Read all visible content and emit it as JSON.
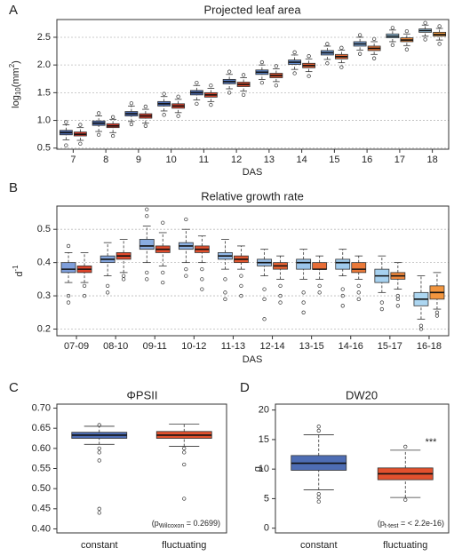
{
  "chart_data": [
    {
      "type": "box",
      "panel": "A",
      "title": "Projected leaf area",
      "ylabel": [
        "log",
        "10",
        "(mm",
        "2",
        ")"
      ],
      "xlabel": "DAS",
      "categories": [
        "7",
        "8",
        "9",
        "10",
        "11",
        "12",
        "13",
        "14",
        "15",
        "16",
        "17",
        "18"
      ],
      "ylim": [
        0.48,
        2.82
      ],
      "yticks": [
        {
          "value": 0.5,
          "label": "0.5"
        },
        {
          "value": 1.0,
          "label": "1.0"
        },
        {
          "value": 1.5,
          "label": "1.5"
        },
        {
          "value": 2.0,
          "label": "2.0"
        },
        {
          "value": 2.5,
          "label": "2.5"
        }
      ],
      "grid": true,
      "series": [
        {
          "colors": [
            "#4e6db4",
            "#4e6db4",
            "#4e6db4",
            "#4f70b8",
            "#5275bd",
            "#577cc2",
            "#5e86c9",
            "#668fcf",
            "#7099d6",
            "#7ea8de",
            "#9ccbea",
            "#a9d4ef"
          ],
          "boxes": [
            {
              "low": 0.65,
              "q1": 0.74,
              "median": 0.78,
              "q3": 0.82,
              "high": 0.92,
              "outliers": [
                0.97,
                0.55
              ]
            },
            {
              "low": 0.8,
              "q1": 0.91,
              "median": 0.95,
              "q3": 0.99,
              "high": 1.08,
              "outliers": [
                1.13,
                0.74
              ]
            },
            {
              "low": 0.98,
              "q1": 1.08,
              "median": 1.12,
              "q3": 1.16,
              "high": 1.26,
              "outliers": [
                1.31,
                0.93
              ]
            },
            {
              "low": 1.17,
              "q1": 1.26,
              "median": 1.3,
              "q3": 1.34,
              "high": 1.43,
              "outliers": [
                1.48,
                1.1
              ]
            },
            {
              "low": 1.37,
              "q1": 1.46,
              "median": 1.5,
              "q3": 1.54,
              "high": 1.63,
              "outliers": [
                1.68,
                1.3
              ]
            },
            {
              "low": 1.57,
              "q1": 1.66,
              "median": 1.7,
              "q3": 1.74,
              "high": 1.83,
              "outliers": [
                1.88,
                1.5
              ]
            },
            {
              "low": 1.74,
              "q1": 1.83,
              "median": 1.87,
              "q3": 1.91,
              "high": 2.0,
              "outliers": [
                2.05,
                1.68
              ]
            },
            {
              "low": 1.92,
              "q1": 2.01,
              "median": 2.05,
              "q3": 2.09,
              "high": 2.18,
              "outliers": [
                2.23,
                1.85
              ]
            },
            {
              "low": 2.1,
              "q1": 2.18,
              "median": 2.22,
              "q3": 2.26,
              "high": 2.34,
              "outliers": [
                2.38,
                2.03
              ]
            },
            {
              "low": 2.27,
              "q1": 2.34,
              "median": 2.38,
              "q3": 2.42,
              "high": 2.5,
              "outliers": [
                2.54,
                2.2
              ]
            },
            {
              "low": 2.42,
              "q1": 2.49,
              "median": 2.52,
              "q3": 2.56,
              "high": 2.63,
              "outliers": [
                2.67,
                2.36
              ]
            },
            {
              "low": 2.52,
              "q1": 2.59,
              "median": 2.62,
              "q3": 2.65,
              "high": 2.72,
              "outliers": [
                2.76,
                2.46
              ]
            }
          ]
        },
        {
          "colors": [
            "#d7392a",
            "#d7392a",
            "#d83c2a",
            "#d9402b",
            "#da452c",
            "#dc4b2d",
            "#de532f",
            "#e05c31",
            "#e36633",
            "#e67336",
            "#ee8a3b",
            "#f29a3f"
          ],
          "boxes": [
            {
              "low": 0.64,
              "q1": 0.72,
              "median": 0.75,
              "q3": 0.79,
              "high": 0.87,
              "outliers": [
                0.92,
                0.58
              ]
            },
            {
              "low": 0.78,
              "q1": 0.87,
              "median": 0.9,
              "q3": 0.94,
              "high": 1.02,
              "outliers": [
                1.06,
                0.72
              ]
            },
            {
              "low": 0.95,
              "q1": 1.04,
              "median": 1.08,
              "q3": 1.12,
              "high": 1.2,
              "outliers": [
                1.25,
                0.9
              ]
            },
            {
              "low": 1.14,
              "q1": 1.22,
              "median": 1.26,
              "q3": 1.3,
              "high": 1.38,
              "outliers": [
                1.43,
                1.08
              ]
            },
            {
              "low": 1.34,
              "q1": 1.42,
              "median": 1.46,
              "q3": 1.5,
              "high": 1.58,
              "outliers": [
                1.63,
                1.28
              ]
            },
            {
              "low": 1.53,
              "q1": 1.61,
              "median": 1.65,
              "q3": 1.69,
              "high": 1.77,
              "outliers": [
                1.82,
                1.46
              ]
            },
            {
              "low": 1.7,
              "q1": 1.77,
              "median": 1.81,
              "q3": 1.85,
              "high": 1.93,
              "outliers": [
                1.98,
                1.63
              ]
            },
            {
              "low": 1.88,
              "q1": 1.95,
              "median": 1.99,
              "q3": 2.03,
              "high": 2.11,
              "outliers": [
                2.16,
                1.8
              ]
            },
            {
              "low": 2.04,
              "q1": 2.11,
              "median": 2.15,
              "q3": 2.19,
              "high": 2.27,
              "outliers": [
                2.31,
                1.96
              ]
            },
            {
              "low": 2.19,
              "q1": 2.26,
              "median": 2.3,
              "q3": 2.34,
              "high": 2.42,
              "outliers": [
                2.47,
                2.12
              ]
            },
            {
              "low": 2.35,
              "q1": 2.42,
              "median": 2.45,
              "q3": 2.49,
              "high": 2.56,
              "outliers": [
                2.61,
                2.28
              ]
            },
            {
              "low": 2.45,
              "q1": 2.52,
              "median": 2.55,
              "q3": 2.59,
              "high": 2.66,
              "outliers": [
                2.7,
                2.38
              ]
            }
          ]
        }
      ]
    },
    {
      "type": "box",
      "panel": "B",
      "title": "Relative growth rate",
      "ylabel": [
        "d",
        "-1"
      ],
      "xlabel": "DAS",
      "categories": [
        "07-09",
        "08-10",
        "09-11",
        "10-12",
        "11-13",
        "12-14",
        "13-15",
        "14-16",
        "15-17",
        "16-18"
      ],
      "ylim": [
        0.18,
        0.57
      ],
      "yticks": [
        0.2,
        0.3,
        0.4,
        0.5
      ],
      "grid": true,
      "series": [
        {
          "colors": [
            "#7f9fdb",
            "#84a6de",
            "#89ade1",
            "#8eb3e4",
            "#93b9e7",
            "#98bfe9",
            "#9cc5eb",
            "#a0cbed",
            "#a6d1ef",
            "#acd6f1"
          ],
          "boxes": [
            {
              "low": 0.34,
              "q1": 0.37,
              "median": 0.38,
              "q3": 0.4,
              "high": 0.43,
              "outliers": [
                0.45,
                0.3,
                0.28
              ]
            },
            {
              "low": 0.36,
              "q1": 0.4,
              "median": 0.41,
              "q3": 0.42,
              "high": 0.46,
              "outliers": [
                0.33,
                0.31
              ]
            },
            {
              "low": 0.4,
              "q1": 0.44,
              "median": 0.45,
              "q3": 0.47,
              "high": 0.51,
              "outliers": [
                0.54,
                0.56,
                0.37,
                0.35
              ]
            },
            {
              "low": 0.4,
              "q1": 0.44,
              "median": 0.45,
              "q3": 0.46,
              "high": 0.5,
              "outliers": [
                0.53,
                0.38,
                0.36
              ]
            },
            {
              "low": 0.38,
              "q1": 0.41,
              "median": 0.42,
              "q3": 0.43,
              "high": 0.47,
              "outliers": [
                0.35,
                0.31,
                0.29
              ]
            },
            {
              "low": 0.36,
              "q1": 0.39,
              "median": 0.4,
              "q3": 0.41,
              "high": 0.44,
              "outliers": [
                0.32,
                0.29,
                0.23
              ]
            },
            {
              "low": 0.35,
              "q1": 0.38,
              "median": 0.4,
              "q3": 0.41,
              "high": 0.44,
              "outliers": [
                0.31,
                0.28,
                0.25
              ]
            },
            {
              "low": 0.36,
              "q1": 0.38,
              "median": 0.4,
              "q3": 0.41,
              "high": 0.44,
              "outliers": [
                0.32,
                0.3,
                0.27
              ]
            },
            {
              "low": 0.31,
              "q1": 0.34,
              "median": 0.36,
              "q3": 0.38,
              "high": 0.42,
              "outliers": [
                0.28,
                0.26
              ]
            },
            {
              "low": 0.23,
              "q1": 0.27,
              "median": 0.29,
              "q3": 0.31,
              "high": 0.36,
              "outliers": [
                0.21,
                0.2
              ]
            }
          ]
        },
        {
          "colors": [
            "#e0452b",
            "#e0482c",
            "#e14c2d",
            "#e2512e",
            "#e45830",
            "#e66233",
            "#e86d36",
            "#ea7939",
            "#ee863b",
            "#f2953e"
          ],
          "boxes": [
            {
              "low": 0.34,
              "q1": 0.37,
              "median": 0.38,
              "q3": 0.39,
              "high": 0.43,
              "outliers": [
                0.33,
                0.3
              ]
            },
            {
              "low": 0.37,
              "q1": 0.41,
              "median": 0.42,
              "q3": 0.43,
              "high": 0.47,
              "outliers": [
                0.36,
                0.35
              ]
            },
            {
              "low": 0.39,
              "q1": 0.43,
              "median": 0.44,
              "q3": 0.45,
              "high": 0.49,
              "outliers": [
                0.52,
                0.37,
                0.34
              ]
            },
            {
              "low": 0.4,
              "q1": 0.43,
              "median": 0.44,
              "q3": 0.45,
              "high": 0.48,
              "outliers": [
                0.38,
                0.35,
                0.32
              ]
            },
            {
              "low": 0.38,
              "q1": 0.4,
              "median": 0.41,
              "q3": 0.42,
              "high": 0.45,
              "outliers": [
                0.36,
                0.33,
                0.3
              ]
            },
            {
              "low": 0.35,
              "q1": 0.38,
              "median": 0.39,
              "q3": 0.4,
              "high": 0.42,
              "outliers": [
                0.33,
                0.3,
                0.28
              ]
            },
            {
              "low": 0.35,
              "q1": 0.38,
              "median": 0.38,
              "q3": 0.4,
              "high": 0.42,
              "outliers": [
                0.33,
                0.31
              ]
            },
            {
              "low": 0.35,
              "q1": 0.37,
              "median": 0.38,
              "q3": 0.4,
              "high": 0.42,
              "outliers": [
                0.33,
                0.31,
                0.29
              ]
            },
            {
              "low": 0.32,
              "q1": 0.35,
              "median": 0.36,
              "q3": 0.37,
              "high": 0.4,
              "outliers": [
                0.3,
                0.29,
                0.27
              ]
            },
            {
              "low": 0.26,
              "q1": 0.29,
              "median": 0.31,
              "q3": 0.33,
              "high": 0.37,
              "outliers": [
                0.25,
                0.24
              ]
            }
          ]
        }
      ]
    },
    {
      "type": "box",
      "panel": "C",
      "title": "ΦPSII",
      "annotation": [
        "(p",
        "Wilcoxon",
        " = 0.2699)"
      ],
      "categories": [
        "constant",
        "fluctuating"
      ],
      "ylim": [
        0.39,
        0.71
      ],
      "yticks": [
        {
          "value": 0.4,
          "label": "0.40"
        },
        {
          "value": 0.45,
          "label": "0.45"
        },
        {
          "value": 0.5,
          "label": "0.50"
        },
        {
          "value": 0.55,
          "label": "0.55"
        },
        {
          "value": 0.6,
          "label": "0.60"
        },
        {
          "value": 0.65,
          "label": "0.65"
        },
        {
          "value": 0.7,
          "label": "0.70"
        }
      ],
      "grid": false,
      "series": [
        {
          "colors": [
            "#4e6db4",
            "#e2512e"
          ],
          "boxes": [
            {
              "low": 0.61,
              "q1": 0.625,
              "median": 0.633,
              "q3": 0.64,
              "high": 0.655,
              "outliers": [
                0.658,
                0.6,
                0.59,
                0.57,
                0.45,
                0.44
              ]
            },
            {
              "low": 0.605,
              "q1": 0.625,
              "median": 0.633,
              "q3": 0.642,
              "high": 0.66,
              "outliers": [
                0.6,
                0.59,
                0.56,
                0.475
              ]
            }
          ]
        }
      ]
    },
    {
      "type": "box",
      "panel": "D",
      "title": "DW20",
      "ylabel": [
        "g"
      ],
      "annotation": [
        "(p",
        "t-test",
        " = < 2.2e-16)"
      ],
      "significance": "***",
      "categories": [
        "constant",
        "fluctuating"
      ],
      "ylim": [
        -0.8,
        21
      ],
      "yticks": [
        0,
        5,
        10,
        15,
        20
      ],
      "grid": false,
      "series": [
        {
          "colors": [
            "#4e6db4",
            "#e2512e"
          ],
          "boxes": [
            {
              "low": 6.5,
              "q1": 9.8,
              "median": 11.0,
              "q3": 12.3,
              "high": 15.8,
              "outliers": [
                16.5,
                17.2,
                5.8,
                5.2,
                4.5
              ]
            },
            {
              "low": 5.2,
              "q1": 8.2,
              "median": 9.2,
              "q3": 10.2,
              "high": 13.2,
              "outliers": [
                13.8,
                4.8
              ]
            }
          ]
        }
      ]
    }
  ]
}
